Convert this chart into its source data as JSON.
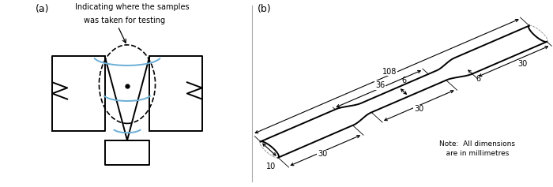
{
  "fig_width": 7.0,
  "fig_height": 2.37,
  "dpi": 100,
  "bg_color": "#ffffff",
  "panel_a_label": "(a)",
  "panel_b_label": "(b)",
  "annotation_text": "Indicating where the samples\nwas taken for testing",
  "note_text": "Note:  All dimensions\n   are in millimetres",
  "line_color": "#000000",
  "blue_color": "#6baed6",
  "gray_color": "#888888",
  "lw_main": 1.4,
  "lw_dim": 0.8,
  "fs_label": 9,
  "fs_annot": 7,
  "fs_dim": 7
}
